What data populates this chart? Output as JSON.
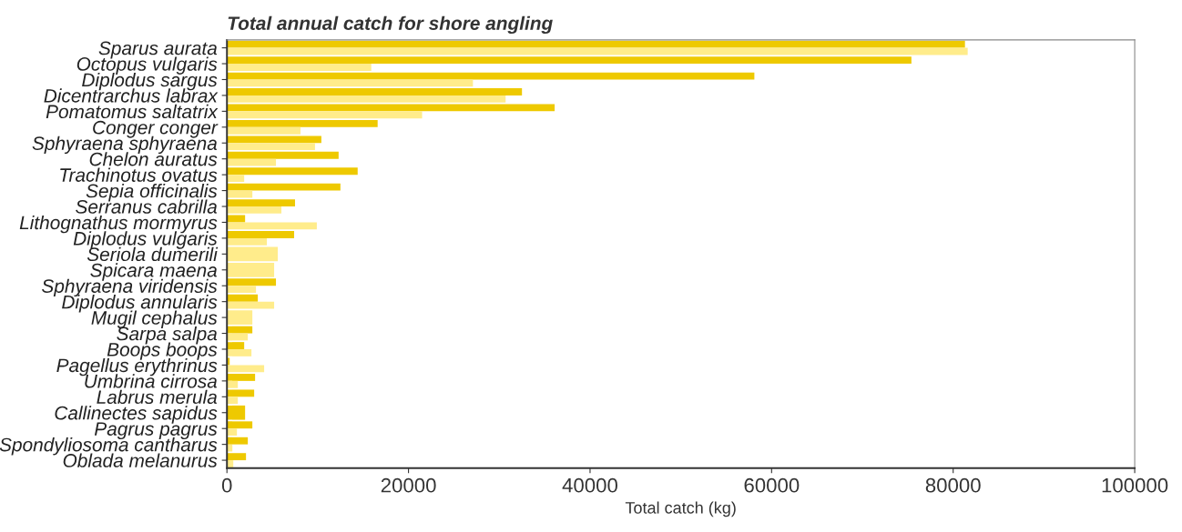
{
  "chart_data": {
    "type": "bar",
    "orientation": "horizontal",
    "title": "Total annual catch for shore angling",
    "xlabel": "Total catch (kg)",
    "categories": [
      "Sparus aurata",
      "Octopus vulgaris",
      "Diplodus sargus",
      "Dicentrarchus labrax",
      "Pomatomus saltatrix",
      "Conger conger",
      "Sphyraena sphyraena",
      "Chelon auratus",
      "Trachinotus ovatus",
      "Sepia officinalis",
      "Serranus cabrilla",
      "Lithognathus mormyrus",
      "Diplodus vulgaris",
      "Seriola dumerili",
      "Spicara maena",
      "Sphyraena viridensis",
      "Diplodus annularis",
      "Mugil cephalus",
      "Sarpa salpa",
      "Boops boops",
      "Pagellus erythrinus",
      "Umbrina cirrosa",
      "Labrus merula",
      "Callinectes sapidus",
      "Pagrus pagrus",
      "Spondyliosoma cantharus",
      "Oblada melanurus"
    ],
    "series": [
      {
        "color": "#eec900",
        "values": [
          81300,
          75400,
          58100,
          32500,
          36100,
          16600,
          10400,
          12300,
          14400,
          12500,
          7500,
          2000,
          7400,
          null,
          null,
          5400,
          3400,
          null,
          2800,
          1900,
          300,
          3100,
          3000,
          2000,
          2800,
          2300,
          2100
        ]
      },
      {
        "color": "#ffec8b",
        "values": [
          81600,
          15900,
          27100,
          30700,
          21500,
          8100,
          9700,
          5400,
          1900,
          2800,
          6000,
          9900,
          4400,
          5600,
          5200,
          3200,
          5200,
          2800,
          2300,
          2700,
          4100,
          1200,
          1200,
          null,
          1100,
          600,
          700
        ]
      }
    ],
    "xlim": [
      0,
      100000
    ],
    "xticks": [
      0,
      20000,
      40000,
      60000,
      80000,
      100000
    ],
    "grid": false,
    "legend": false
  }
}
